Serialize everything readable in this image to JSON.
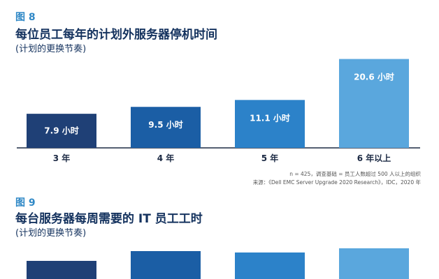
{
  "colors": [
    "#1f4076",
    "#1b5ea5",
    "#2c82c9",
    "#5aa7dd"
  ],
  "figure8": {
    "label": "图 8",
    "title": "每位员工每年的计划外服务器停机时间",
    "subtitle": "(计划的更换节奏)",
    "note": "n = 425，调查基础 = 员工人数超过 500 人以上的组织",
    "source": "来源：《Dell EMC Server Upgrade 2020 Research》，IDC，2020 年"
  },
  "figure9": {
    "label": "图 9",
    "title": "每台服务器每周需要的 IT 员工工时",
    "subtitle": "(计划的更换节奏)"
  },
  "chart_data": [
    {
      "type": "bar",
      "title": "每位员工每年的计划外服务器停机时间",
      "subtitle": "(计划的更换节奏)",
      "categories": [
        "3 年",
        "4 年",
        "5 年",
        "6 年以上"
      ],
      "values": [
        7.9,
        9.5,
        11.1,
        20.6
      ],
      "value_labels": [
        "7.9 小时",
        "9.5 小时",
        "11.1 小时",
        "20.6 小时"
      ],
      "ylim": [
        0,
        21.5
      ],
      "grid": false,
      "legend": "none"
    },
    {
      "type": "bar",
      "title": "每台服务器每周需要的 IT 员工工时",
      "subtitle": "(计划的更换节奏)",
      "categories": [],
      "values": [],
      "grid": false,
      "legend": "none"
    }
  ]
}
